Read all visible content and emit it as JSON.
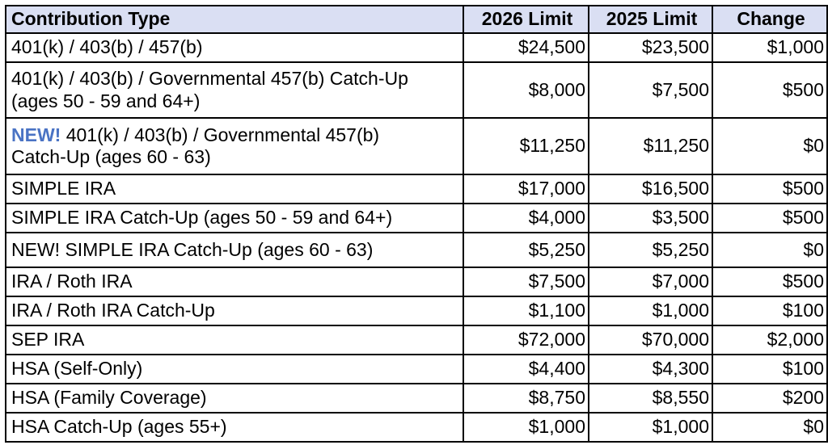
{
  "table": {
    "headers": {
      "type": "Contribution Type",
      "limit_2026": "2026 Limit",
      "limit_2025": "2025 Limit",
      "change": "Change"
    },
    "new_prefix": "NEW!",
    "rows": [
      {
        "type": "401(k) / 403(b) / 457(b)",
        "limit_2026": "$24,500",
        "limit_2025": "$23,500",
        "change": "$1,000"
      },
      {
        "type_line1": "401(k) / 403(b) / Governmental 457(b) Catch-Up",
        "type_line2": "(ages 50 - 59 and 64+)",
        "limit_2026": "$8,000",
        "limit_2025": "$7,500",
        "change": "$500"
      },
      {
        "type_line1": "401(k) / 403(b) / Governmental 457(b)",
        "type_line2": "Catch-Up (ages 60 - 63)",
        "limit_2026": "$11,250",
        "limit_2025": "$11,250",
        "change": "$0"
      },
      {
        "type": "SIMPLE IRA",
        "limit_2026": "$17,000",
        "limit_2025": "$16,500",
        "change": "$500"
      },
      {
        "type": "SIMPLE IRA Catch-Up (ages 50 - 59 and 64+)",
        "limit_2026": "$4,000",
        "limit_2025": "$3,500",
        "change": "$500"
      },
      {
        "type": "NEW! SIMPLE IRA Catch-Up (ages 60 - 63)",
        "limit_2026": "$5,250",
        "limit_2025": "$5,250",
        "change": "$0"
      },
      {
        "type": "IRA / Roth IRA",
        "limit_2026": "$7,500",
        "limit_2025": "$7,000",
        "change": "$500"
      },
      {
        "type": "IRA / Roth IRA Catch-Up",
        "limit_2026": "$1,100",
        "limit_2025": "$1,000",
        "change": "$100"
      },
      {
        "type": "SEP IRA",
        "limit_2026": "$72,000",
        "limit_2025": "$70,000",
        "change": "$2,000"
      },
      {
        "type": "HSA (Self-Only)",
        "limit_2026": "$4,400",
        "limit_2025": "$4,300",
        "change": "$100"
      },
      {
        "type": "HSA (Family Coverage)",
        "limit_2026": "$8,750",
        "limit_2025": "$8,550",
        "change": "$200"
      },
      {
        "type": "HSA Catch-Up (ages 55+)",
        "limit_2026": "$1,000",
        "limit_2025": "$1,000",
        "change": "$0"
      }
    ],
    "colors": {
      "header_bg": "#dadff3",
      "new_tag": "#4a73c4",
      "border": "#000000"
    }
  }
}
